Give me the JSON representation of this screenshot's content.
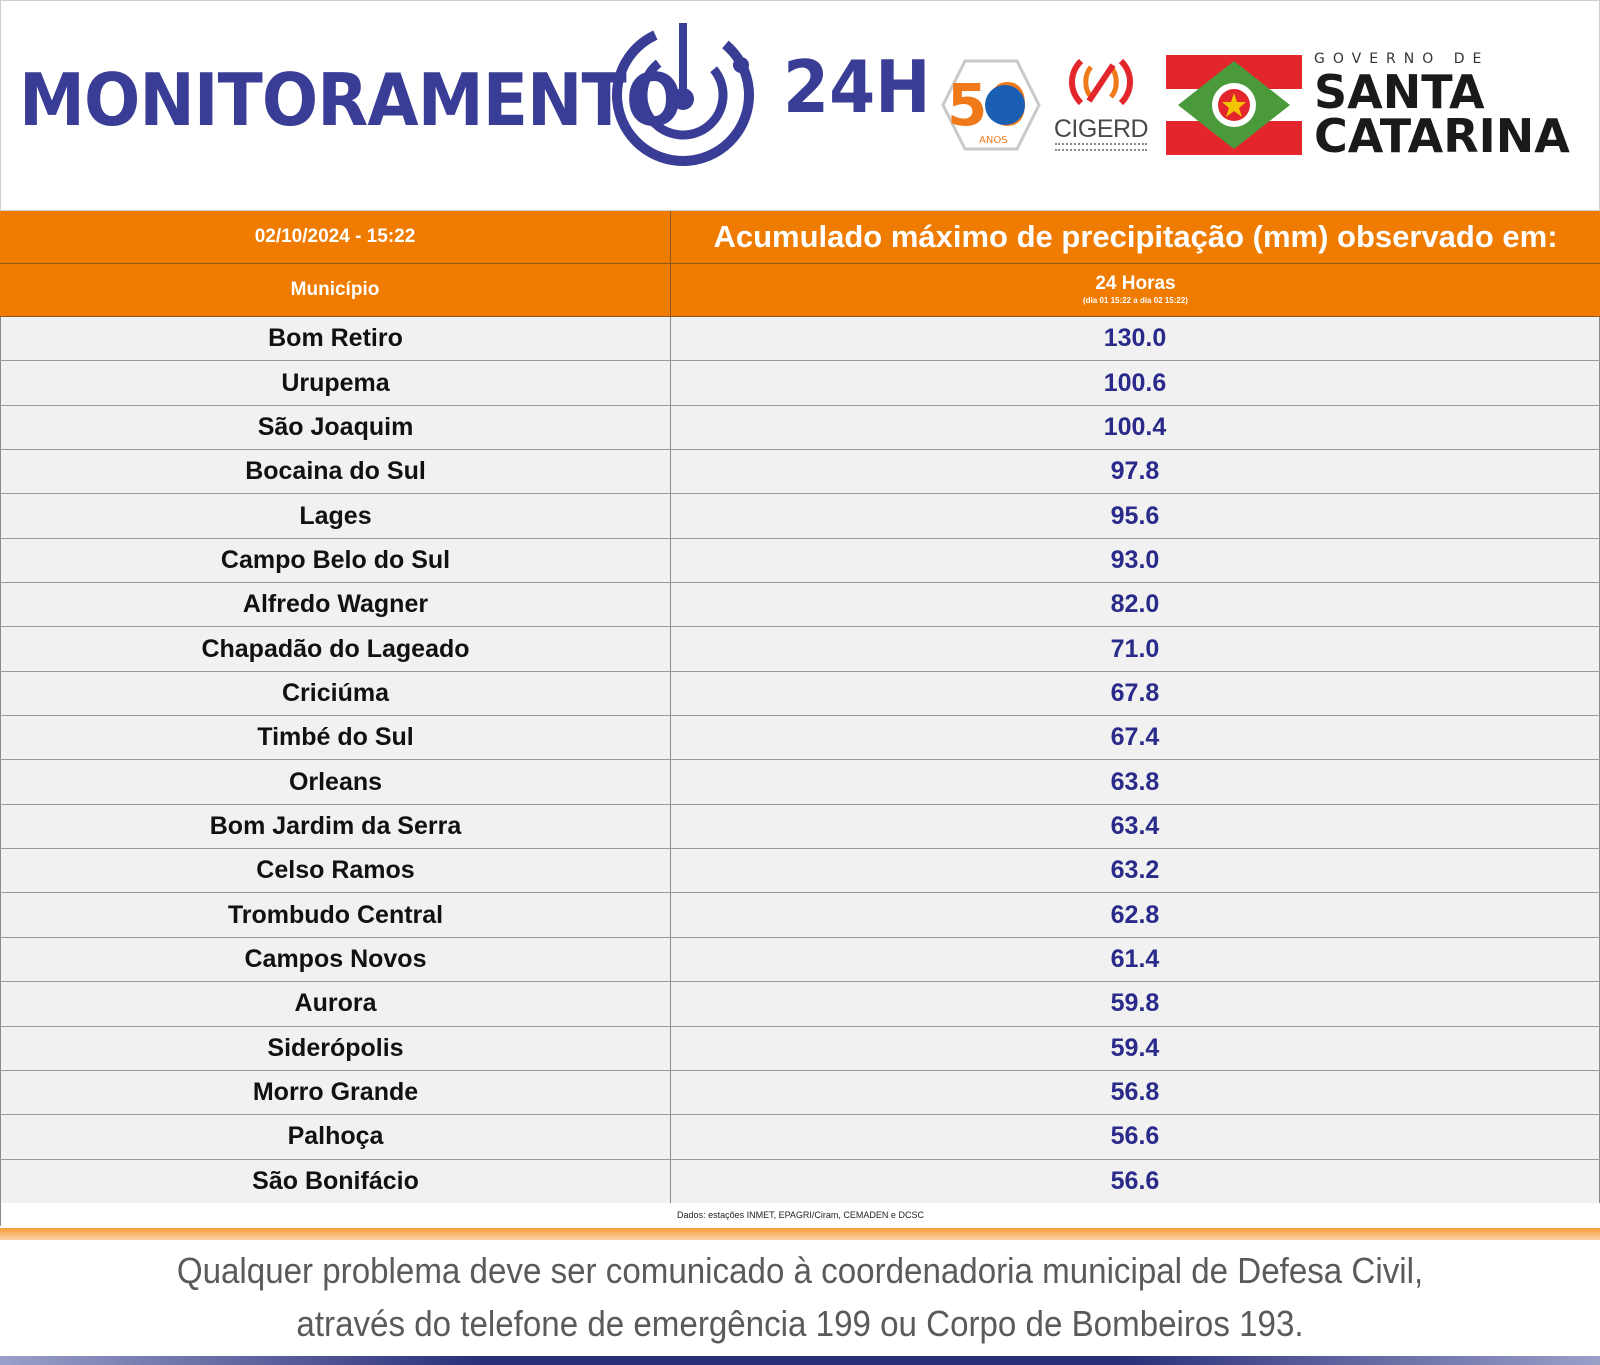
{
  "header": {
    "brand_word": "MONITORAMENTO",
    "brand_suffix": "24H",
    "logo_50_text": "50",
    "logo_50_sub": "ANOS",
    "cigerd_text": "CIGERD",
    "gov_small": "GOVERNO DE",
    "gov_line1": "SANTA",
    "gov_line2": "CATARINA"
  },
  "table": {
    "datetime": "02/10/2024 - 15:22",
    "title": "Acumulado máximo de precipitação (mm) observado em:",
    "col_municipio": "Município",
    "col_period": "24 Horas",
    "col_period_sub": "(dia 01 15:22 a dia 02 15:22)",
    "rows": [
      {
        "municipio": "Bom Retiro",
        "valor": "130.0"
      },
      {
        "municipio": "Urupema",
        "valor": "100.6"
      },
      {
        "municipio": "São Joaquim",
        "valor": "100.4"
      },
      {
        "municipio": "Bocaina do Sul",
        "valor": "97.8"
      },
      {
        "municipio": "Lages",
        "valor": "95.6"
      },
      {
        "municipio": "Campo Belo do Sul",
        "valor": "93.0"
      },
      {
        "municipio": "Alfredo Wagner",
        "valor": "82.0"
      },
      {
        "municipio": "Chapadão do Lageado",
        "valor": "71.0"
      },
      {
        "municipio": "Criciúma",
        "valor": "67.8"
      },
      {
        "municipio": "Timbé do Sul",
        "valor": "67.4"
      },
      {
        "municipio": "Orleans",
        "valor": "63.8"
      },
      {
        "municipio": "Bom Jardim da Serra",
        "valor": "63.4"
      },
      {
        "municipio": "Celso Ramos",
        "valor": "63.2"
      },
      {
        "municipio": "Trombudo Central",
        "valor": "62.8"
      },
      {
        "municipio": "Campos Novos",
        "valor": "61.4"
      },
      {
        "municipio": "Aurora",
        "valor": "59.8"
      },
      {
        "municipio": "Siderópolis",
        "valor": "59.4"
      },
      {
        "municipio": "Morro Grande",
        "valor": "56.8"
      },
      {
        "municipio": "Palhoça",
        "valor": "56.6"
      },
      {
        "municipio": "São Bonifácio",
        "valor": "56.6"
      }
    ],
    "source": "Dados: estações INMET, EPAGRI/Ciram, CEMADEN e DCSC"
  },
  "footer": {
    "line1": "Qualquer problema deve ser comunicado à coordenadoria municipal de Defesa Civil,",
    "line2": "através do telefone de emergência 199 ou Corpo de Bombeiros 193."
  },
  "colors": {
    "brand_blue": "#3a3d96",
    "header_orange": "#ef7b00",
    "value_blue": "#2a2a8a",
    "flag_red": "#e3262b",
    "flag_green": "#4a9a3c"
  },
  "icons": [
    "monitoramento-target-icon",
    "fifty-years-badge-icon",
    "cigerd-signal-icon",
    "santa-catarina-flag-icon"
  ]
}
